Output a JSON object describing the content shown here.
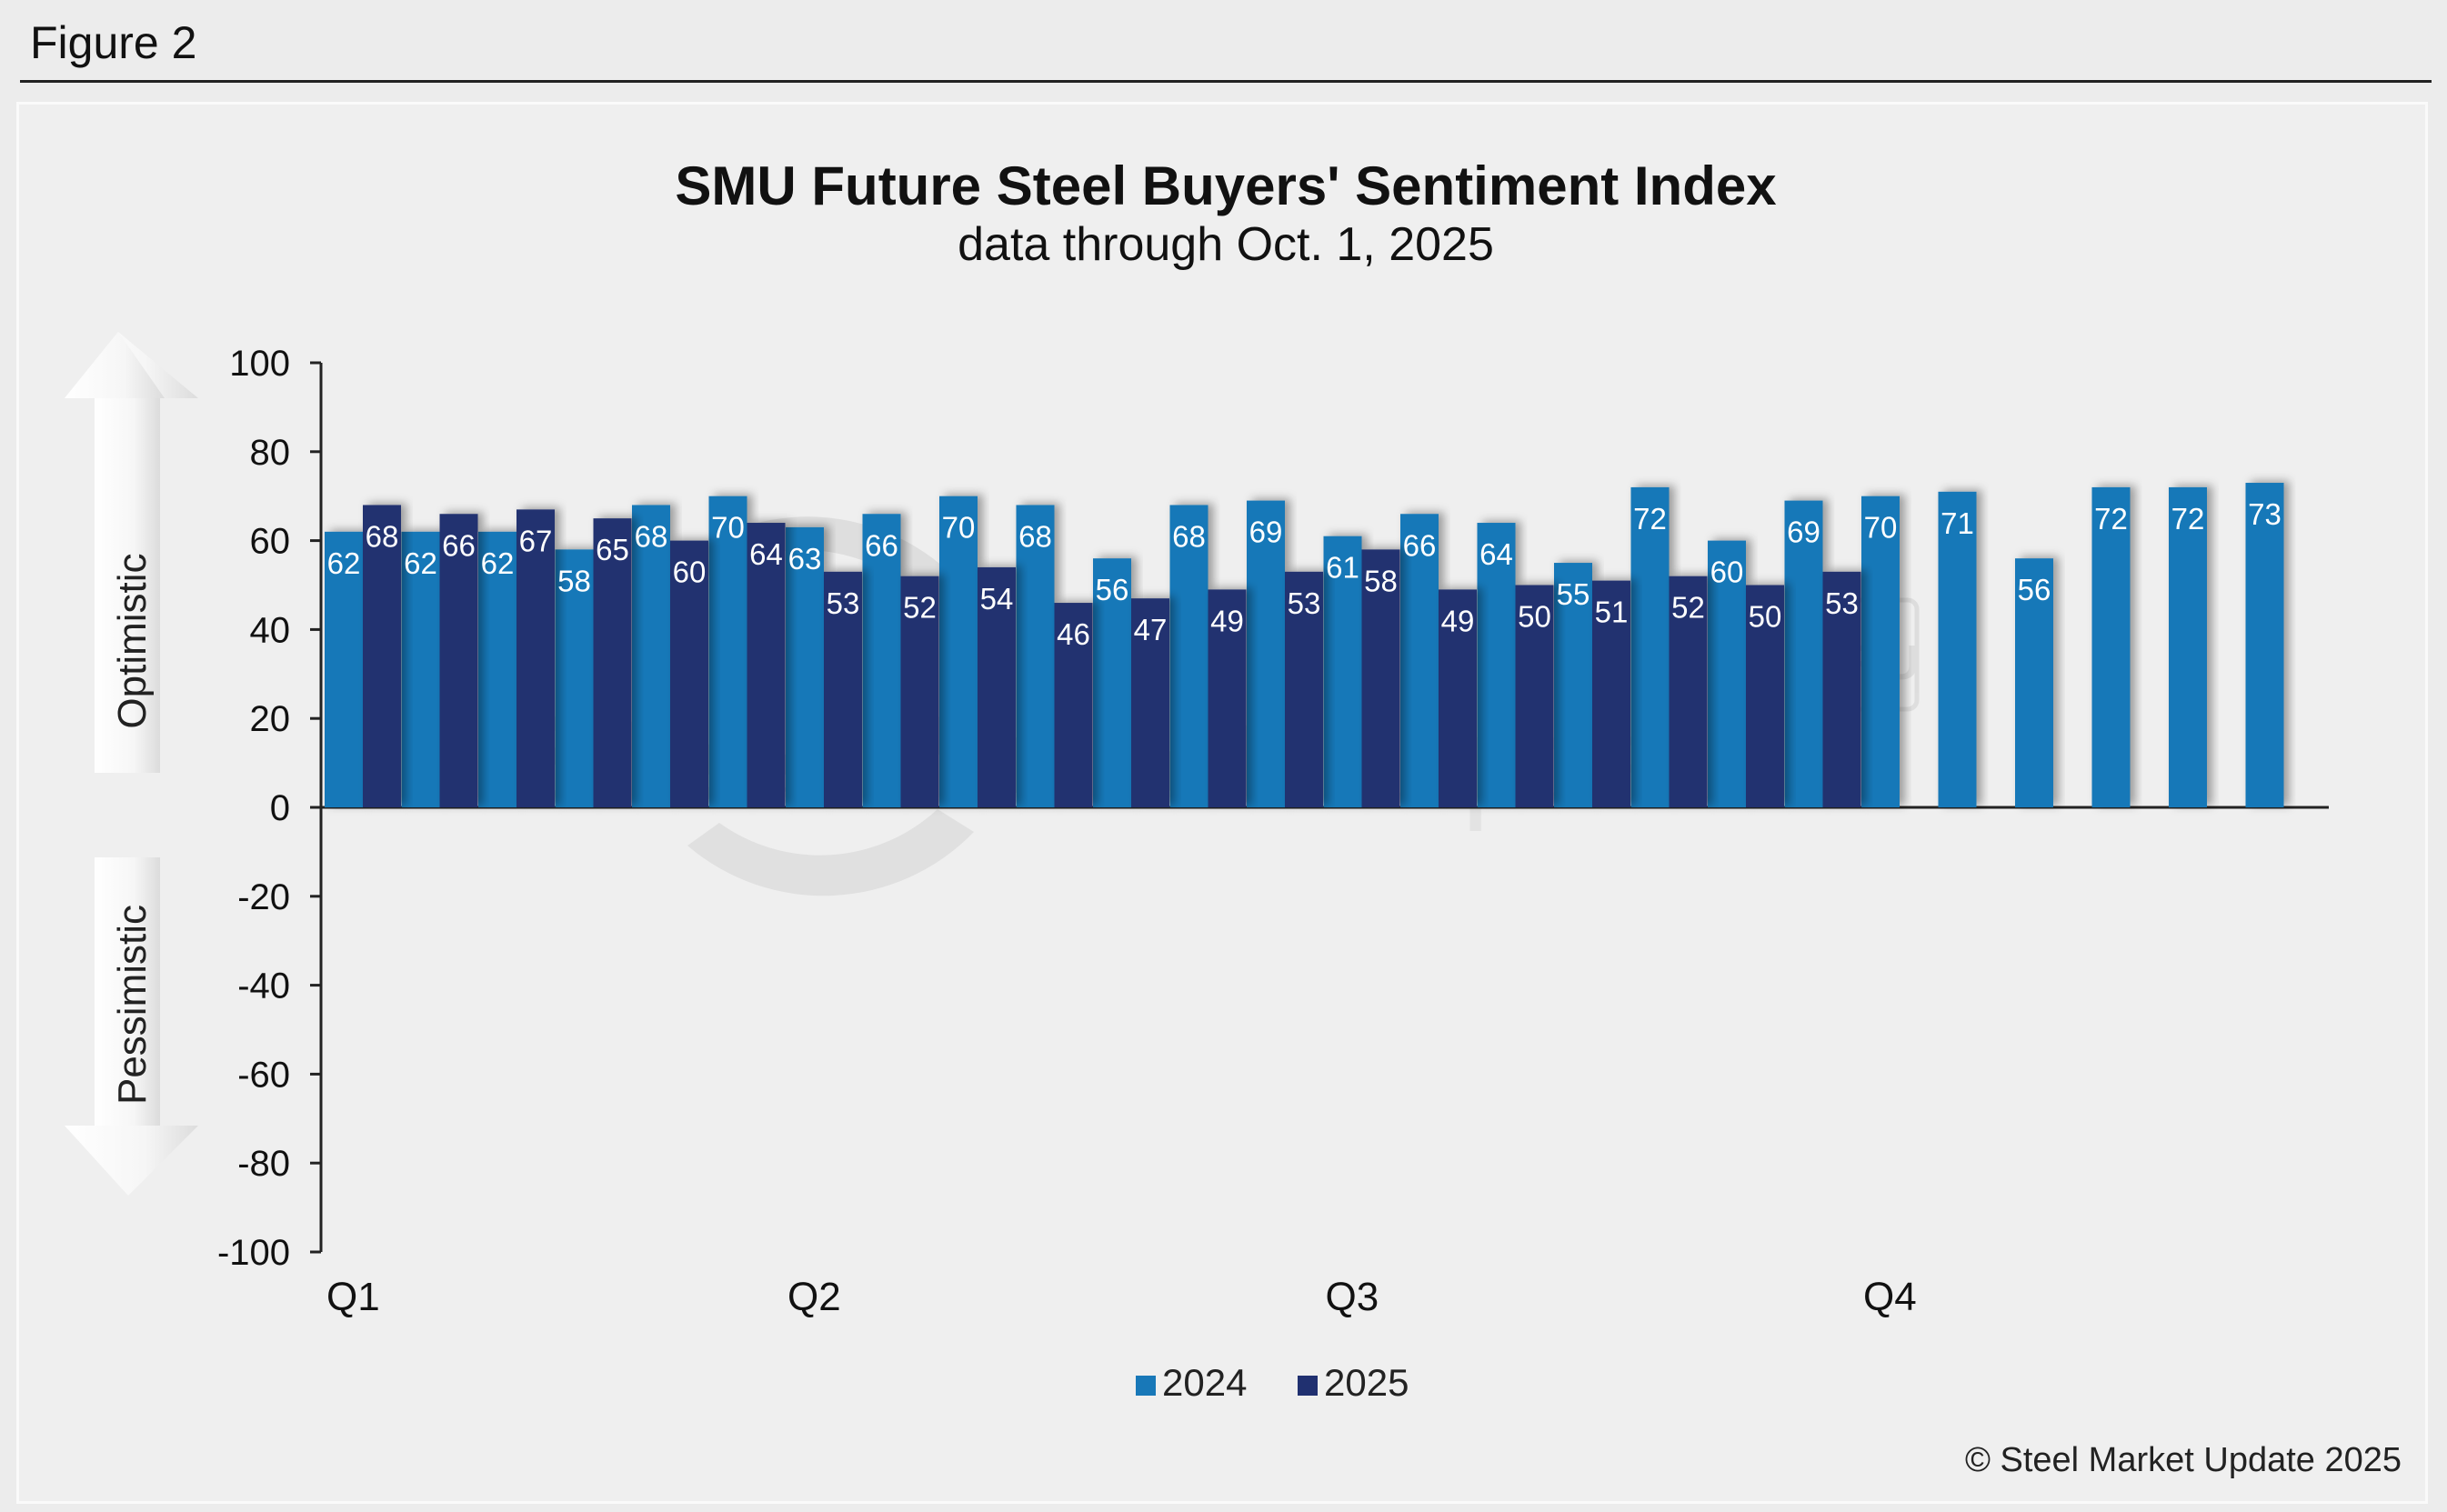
{
  "figure_label": "Figure 2",
  "copyright": "© Steel Market Update 2025",
  "watermark": {
    "text_bold": "Steel Market",
    "text_light": "Update",
    "badge": "CRU"
  },
  "side_labels": {
    "top": "Optimistic",
    "bottom": "Pessimistic"
  },
  "colors": {
    "series_2024": "#1878b8",
    "series_2025": "#203070",
    "background": "#efefef"
  },
  "chart_data": {
    "type": "bar",
    "title": "SMU Future Steel Buyers' Sentiment Index",
    "subtitle": "data through Oct. 1, 2025",
    "xlabel": "",
    "ylabel": "",
    "ylim": [
      -100,
      100
    ],
    "yticks": [
      100,
      80,
      60,
      40,
      20,
      0,
      -20,
      -40,
      -60,
      -80,
      -100
    ],
    "quarter_labels": [
      {
        "label": "Q1",
        "slot": 0
      },
      {
        "label": "Q2",
        "slot": 6
      },
      {
        "label": "Q3",
        "slot": 13
      },
      {
        "label": "Q4",
        "slot": 20
      }
    ],
    "grid": false,
    "legend_position": "bottom-center",
    "series": [
      {
        "name": "2024",
        "values": [
          62,
          62,
          62,
          58,
          68,
          70,
          63,
          66,
          70,
          68,
          56,
          68,
          69,
          61,
          66,
          64,
          55,
          72,
          60,
          69,
          70,
          71,
          56,
          72,
          72,
          73
        ]
      },
      {
        "name": "2025",
        "values": [
          68,
          66,
          67,
          65,
          60,
          64,
          53,
          52,
          54,
          46,
          47,
          49,
          53,
          58,
          49,
          50,
          51,
          52,
          50,
          53
        ]
      }
    ]
  }
}
